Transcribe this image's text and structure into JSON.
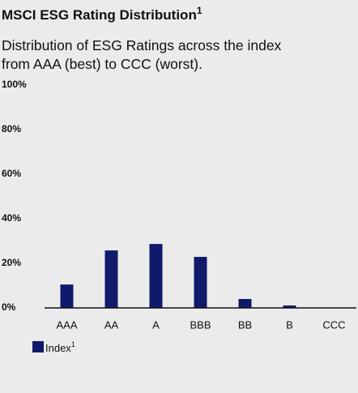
{
  "chart_data": {
    "type": "bar",
    "title": "MSCI ESG Rating Distribution",
    "title_note": "1",
    "subtitle": [
      "Distribution of ESG Ratings across the index",
      "from AAA (best) to CCC (worst)."
    ],
    "categories": [
      "AAA",
      "AA",
      "A",
      "BBB",
      "BB",
      "B",
      "CCC"
    ],
    "series": [
      {
        "name": "Index",
        "note": "1",
        "color": "#0f1a6b",
        "values": [
          10.5,
          25.8,
          28.7,
          22.9,
          4,
          1.1,
          0
        ]
      }
    ],
    "ylim": [
      0,
      100
    ],
    "yticks": [
      {
        "value": 0,
        "label": "0%"
      },
      {
        "value": 20,
        "label": "20%"
      },
      {
        "value": 40,
        "label": "40%"
      },
      {
        "value": 60,
        "label": "60%"
      },
      {
        "value": 80,
        "label": "80%"
      },
      {
        "value": 100,
        "label": "100%"
      }
    ],
    "grid": false
  }
}
